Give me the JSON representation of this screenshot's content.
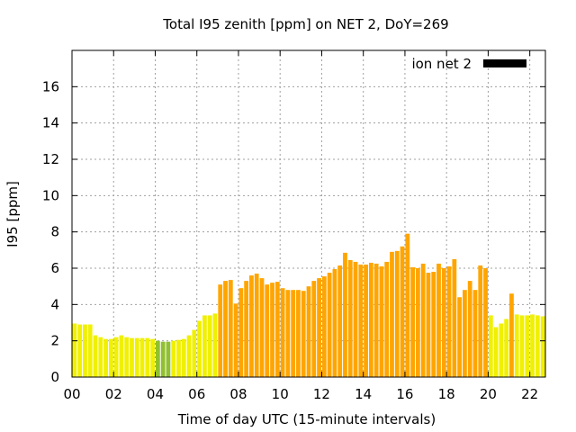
{
  "chart_data": {
    "type": "bar",
    "title": "Total I95 zenith [ppm] on NET 2, DoY=269",
    "xlabel": "Time of day UTC (15-minute intervals)",
    "ylabel": "I95 [ppm]",
    "x_unit": "hour of day (UTC)",
    "xlim": [
      0,
      22.75
    ],
    "ylim": [
      0,
      18
    ],
    "x_ticks": [
      "00",
      "02",
      "04",
      "06",
      "08",
      "10",
      "12",
      "14",
      "16",
      "18",
      "20",
      "22"
    ],
    "y_ticks": [
      "0",
      "2",
      "4",
      "6",
      "8",
      "10",
      "12",
      "14",
      "16"
    ],
    "grid": true,
    "legend": {
      "position": "top-right",
      "label": "ion net 2",
      "color": "#000000"
    },
    "color_scale": {
      "low": "#f0f000",
      "mid": "#90c030",
      "high": "#ffa500"
    },
    "series": [
      {
        "name": "ion net 2",
        "bar_width_hours": 0.25,
        "x": [
          0,
          0.25,
          0.5,
          0.75,
          1,
          1.25,
          1.5,
          1.75,
          2,
          2.25,
          2.5,
          2.75,
          3,
          3.25,
          3.5,
          3.75,
          4,
          4.25,
          4.5,
          4.75,
          5,
          5.25,
          5.5,
          5.75,
          6,
          6.25,
          6.5,
          6.75,
          7,
          7.25,
          7.5,
          7.75,
          8,
          8.25,
          8.5,
          8.75,
          9,
          9.25,
          9.5,
          9.75,
          10,
          10.25,
          10.5,
          10.75,
          11,
          11.25,
          11.5,
          11.75,
          12,
          12.25,
          12.5,
          12.75,
          13,
          13.25,
          13.5,
          13.75,
          14,
          14.25,
          14.5,
          14.75,
          15,
          15.25,
          15.5,
          15.75,
          16,
          16.25,
          16.5,
          16.75,
          17,
          17.25,
          17.5,
          17.75,
          18,
          18.25,
          18.5,
          18.75,
          19,
          19.25,
          19.5,
          19.75,
          20,
          20.25,
          20.5,
          20.75,
          21,
          21.25,
          21.5,
          21.75,
          22,
          22.25,
          22.5
        ],
        "values": [
          2.95,
          2.9,
          2.9,
          2.9,
          2.3,
          2.2,
          2.1,
          2.1,
          2.2,
          2.3,
          2.2,
          2.15,
          2.15,
          2.15,
          2.15,
          2.1,
          2.0,
          1.95,
          1.95,
          2.0,
          2.05,
          2.1,
          2.3,
          2.6,
          3.1,
          3.4,
          3.4,
          3.5,
          5.1,
          5.3,
          5.35,
          4.05,
          4.9,
          5.3,
          5.6,
          5.7,
          5.45,
          5.1,
          5.2,
          5.25,
          4.9,
          4.8,
          4.8,
          4.8,
          4.75,
          5.0,
          5.3,
          5.45,
          5.55,
          5.75,
          5.95,
          6.15,
          6.85,
          6.45,
          6.35,
          6.2,
          6.2,
          6.3,
          6.25,
          6.1,
          6.35,
          6.9,
          6.95,
          7.2,
          7.9,
          6.05,
          6.0,
          6.25,
          5.75,
          5.8,
          6.25,
          6.0,
          6.1,
          6.5,
          4.4,
          4.8,
          5.3,
          4.8,
          6.15,
          6.0,
          3.4,
          2.75,
          2.95,
          3.2,
          4.6,
          3.45,
          3.4,
          3.4,
          3.45,
          3.4,
          3.35
        ],
        "colors": [
          "#f0f000",
          "#f0f000",
          "#f0f000",
          "#f0f000",
          "#f0f000",
          "#f0f000",
          "#f0f000",
          "#f0f000",
          "#f0f000",
          "#f0f000",
          "#f0f000",
          "#f0f000",
          "#f0f000",
          "#f0f000",
          "#f0f000",
          "#f0f000",
          "#90c030",
          "#90c030",
          "#90c030",
          "#f0f000",
          "#f0f000",
          "#f0f000",
          "#f0f000",
          "#f0f000",
          "#f0f000",
          "#f0f000",
          "#f0f000",
          "#f0f000",
          "#ffa500",
          "#ffa500",
          "#ffa500",
          "#ffa500",
          "#ffa500",
          "#ffa500",
          "#ffa500",
          "#ffa500",
          "#ffa500",
          "#ffa500",
          "#ffa500",
          "#ffa500",
          "#ffa500",
          "#ffa500",
          "#ffa500",
          "#ffa500",
          "#ffa500",
          "#ffa500",
          "#ffa500",
          "#ffa500",
          "#ffa500",
          "#ffa500",
          "#ffa500",
          "#ffa500",
          "#ffa500",
          "#ffa500",
          "#ffa500",
          "#ffa500",
          "#ffa500",
          "#ffa500",
          "#ffa500",
          "#ffa500",
          "#ffa500",
          "#ffa500",
          "#ffa500",
          "#ffa500",
          "#ffa500",
          "#ffa500",
          "#ffa500",
          "#ffa500",
          "#ffa500",
          "#ffa500",
          "#ffa500",
          "#ffa500",
          "#ffa500",
          "#ffa500",
          "#ffa500",
          "#ffa500",
          "#ffa500",
          "#ffa500",
          "#ffa500",
          "#ffa500",
          "#f0f000",
          "#f0f000",
          "#f0f000",
          "#f0f000",
          "#ffa500",
          "#f0f000",
          "#f0f000",
          "#f0f000",
          "#f0f000",
          "#f0f000",
          "#f0f000"
        ]
      }
    ]
  }
}
